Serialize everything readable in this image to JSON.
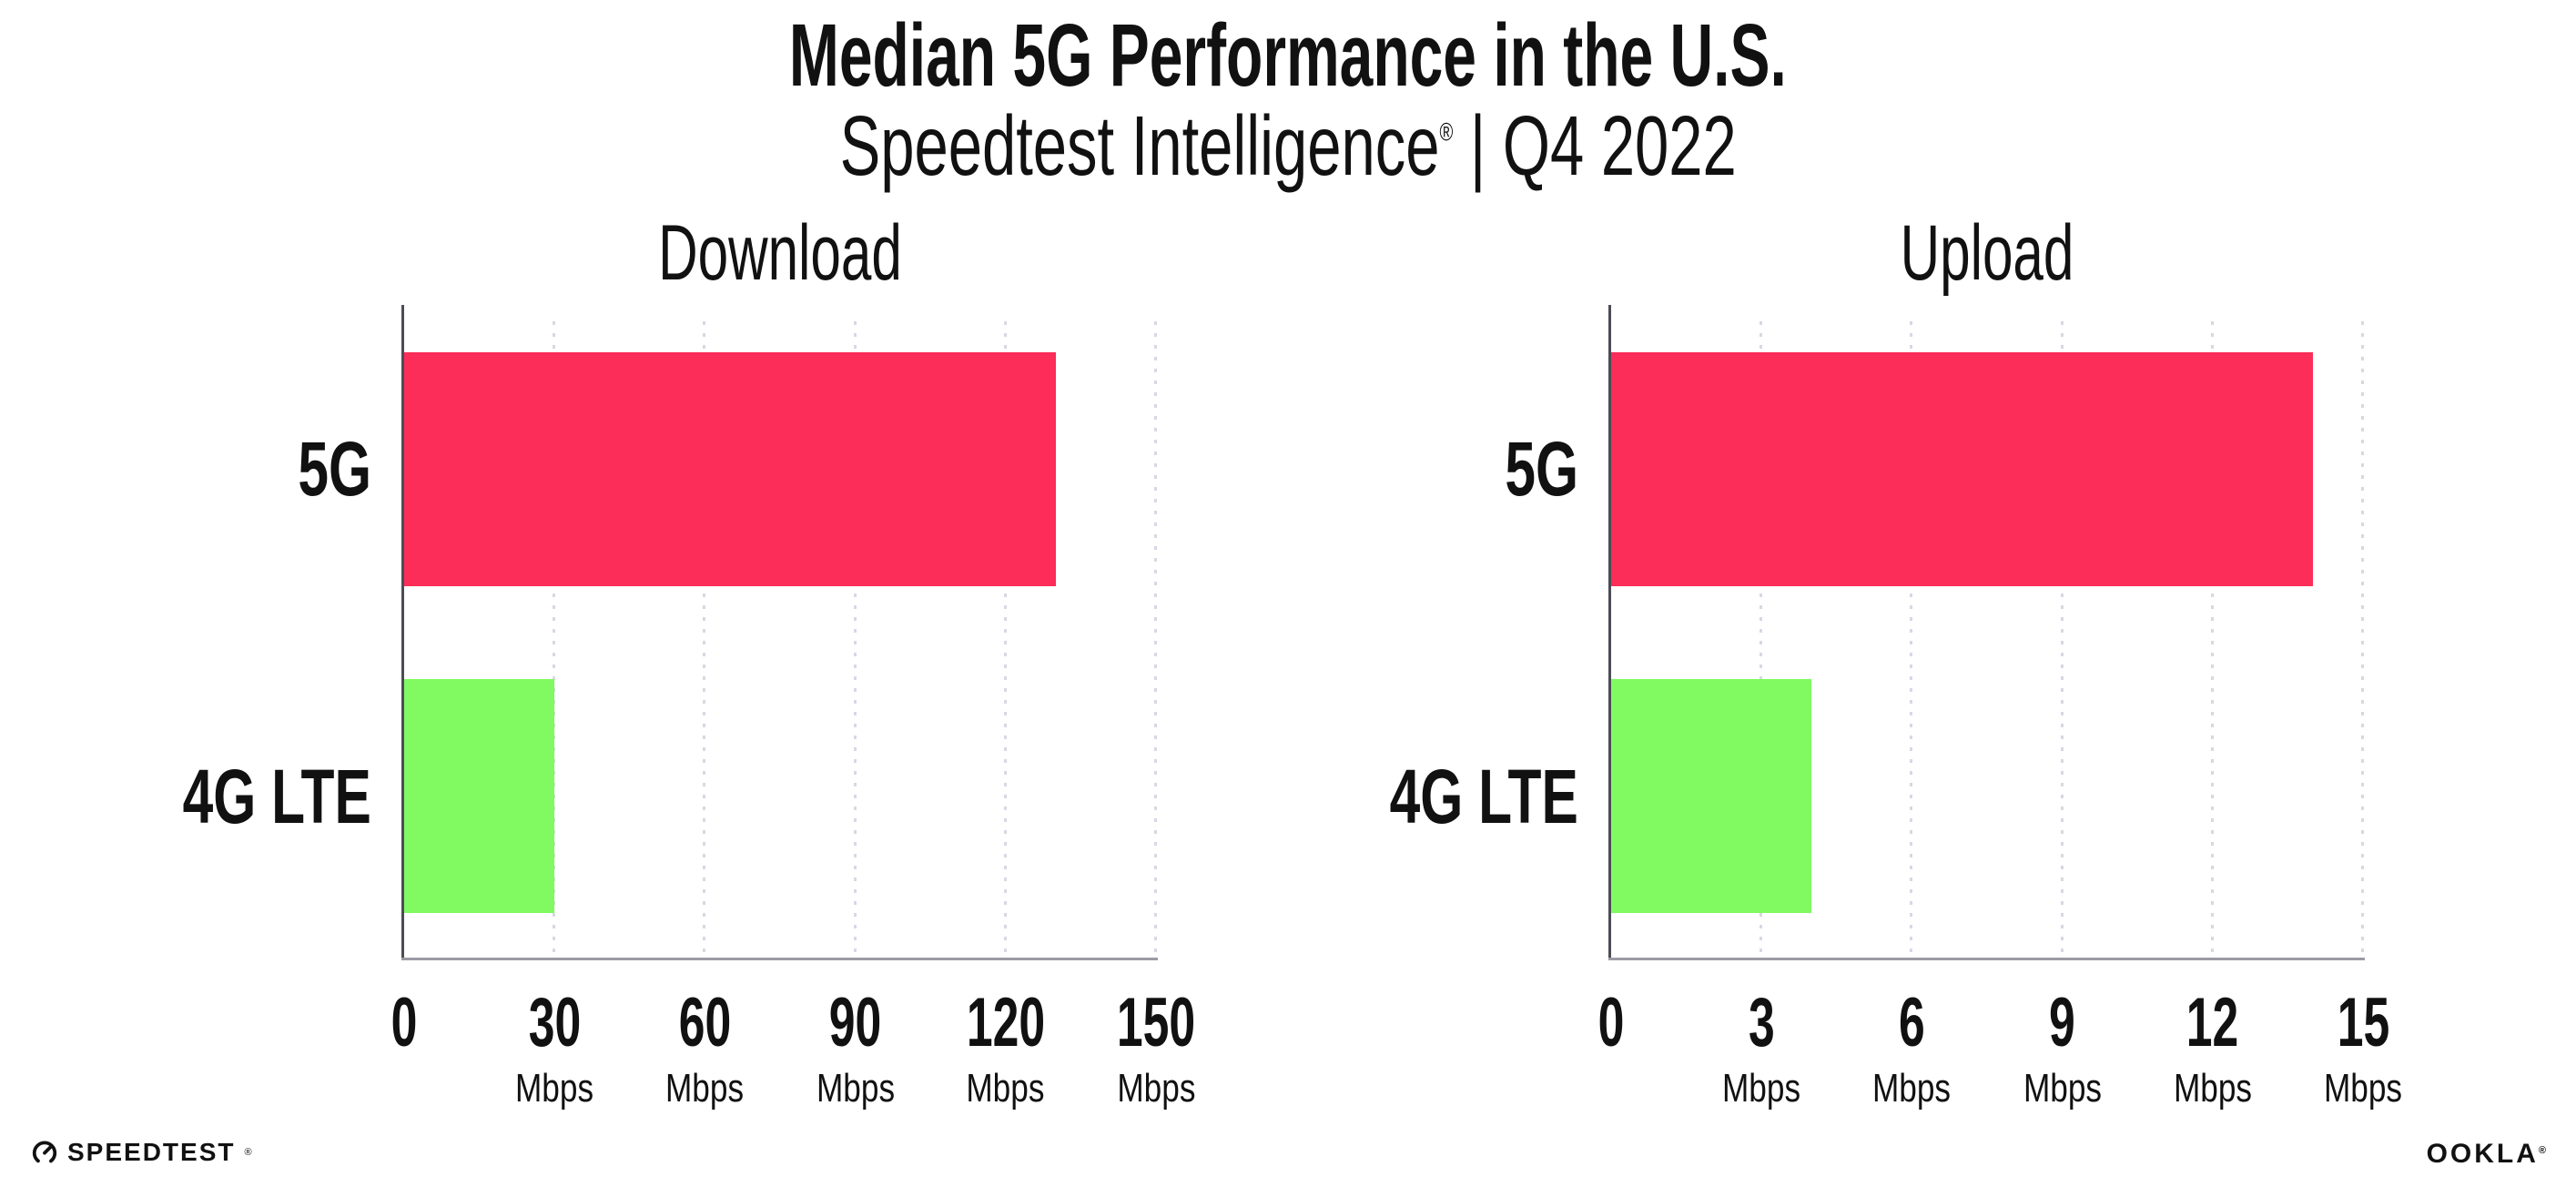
{
  "header": {
    "title": "Median 5G Performance in the U.S.",
    "subtitle_brand": "Speedtest Intelligence",
    "subtitle_reg": "®",
    "subtitle_rest": " | Q4 2022"
  },
  "chart_data": [
    {
      "type": "bar",
      "orientation": "horizontal",
      "title": "Download",
      "categories": [
        "5G",
        "4G LTE"
      ],
      "values": [
        130,
        30
      ],
      "unit": "Mbps",
      "xlim": [
        0,
        150
      ],
      "xticks": [
        0,
        30,
        60,
        90,
        120,
        150
      ],
      "bar_colors": [
        "#fc2d58",
        "#80fa60"
      ],
      "grid": "dotted-vertical-at-major-ticks",
      "legend": "none"
    },
    {
      "type": "bar",
      "orientation": "horizontal",
      "title": "Upload",
      "categories": [
        "5G",
        "4G LTE"
      ],
      "values": [
        14,
        4
      ],
      "unit": "Mbps",
      "xlim": [
        0,
        15
      ],
      "xticks": [
        0,
        3,
        6,
        9,
        12,
        15
      ],
      "bar_colors": [
        "#fc2d58",
        "#80fa60"
      ],
      "grid": "dotted-vertical-at-major-ticks",
      "legend": "none"
    }
  ],
  "footer": {
    "speedtest_label": "SPEEDTEST",
    "speedtest_reg": "®",
    "ookla_label": "OOKLA",
    "ookla_reg": "®"
  },
  "colors": {
    "bar_5g": "#fc2d58",
    "bar_4g_lte": "#80fa60",
    "spine": "#4c4c57",
    "axis_line": "#9b9ba4",
    "gridline": "#d8d8e4",
    "text": "#111111"
  }
}
